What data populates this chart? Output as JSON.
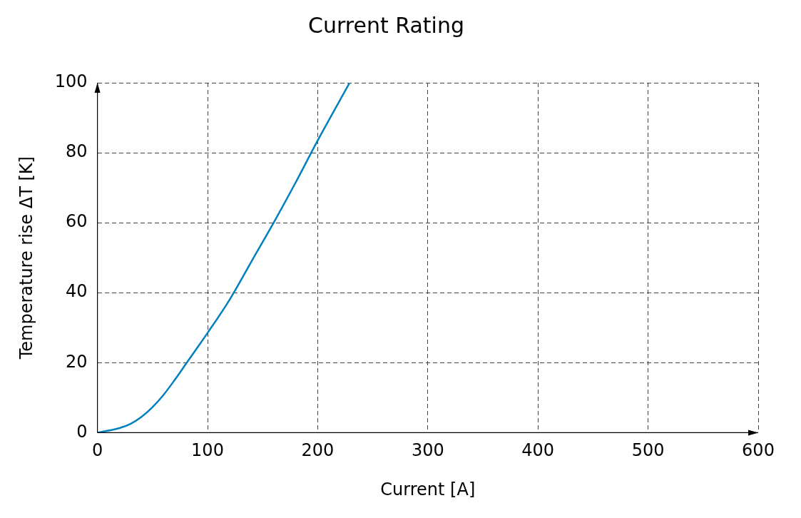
{
  "chart_data": {
    "type": "line",
    "title": "Current Rating",
    "xlabel": "Current [A]",
    "ylabel": "Temperature rise ΔT [K]",
    "series": [
      {
        "color": "#0080c0",
        "x": [
          0,
          10,
          20,
          30,
          40,
          50,
          60,
          70,
          80,
          90,
          100,
          120,
          140,
          160,
          180,
          200,
          229
        ],
        "values": [
          0,
          0.6,
          1.3,
          2.5,
          4.5,
          7.3,
          10.8,
          15,
          19.5,
          24,
          28.5,
          38,
          49,
          60,
          71.5,
          83.5,
          100
        ]
      }
    ],
    "xlim": [
      0,
      600
    ],
    "xticks": [
      0,
      100,
      200,
      300,
      400,
      500,
      600
    ],
    "ylim": [
      0,
      100
    ],
    "yticks": [
      0,
      20,
      40,
      60,
      80,
      100
    ],
    "grid": true,
    "legend": false,
    "marker": "none",
    "line_style": "solid"
  }
}
